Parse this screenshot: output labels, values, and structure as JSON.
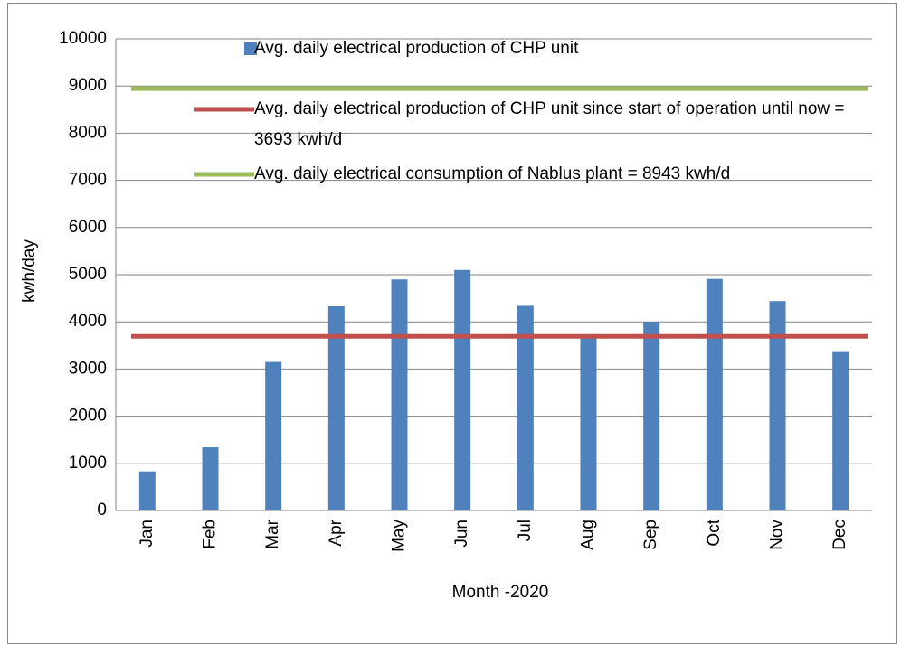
{
  "chart_data": {
    "type": "bar",
    "categories": [
      "Jan",
      "Feb",
      "Mar",
      "Apr",
      "May",
      "Jun",
      "Jul",
      "Aug",
      "Sep",
      "Oct",
      "Nov",
      "Dec"
    ],
    "series": [
      {
        "name": "Avg. daily electrical production of CHP unit",
        "color": "#4f81bd",
        "values": [
          830,
          1340,
          3150,
          4330,
          4900,
          5100,
          4340,
          3680,
          4000,
          4910,
          4440,
          3360
        ]
      }
    ],
    "reference_lines": [
      {
        "name": "Avg. daily electrical production of CHP unit since start of operation until now = 3693 kwh/d",
        "color": "#c0504d",
        "value": 3693
      },
      {
        "name": "Avg. daily electrical consumption of Nablus plant = 8943 kwh/d",
        "color": "#9bbb59",
        "value": 8943
      }
    ],
    "x_label": "Month -2020",
    "y_label": "kwh/day",
    "ylim": [
      0,
      10000
    ],
    "yticks": [
      0,
      1000,
      2000,
      3000,
      4000,
      5000,
      6000,
      7000,
      8000,
      9000,
      10000
    ],
    "grid": true
  }
}
